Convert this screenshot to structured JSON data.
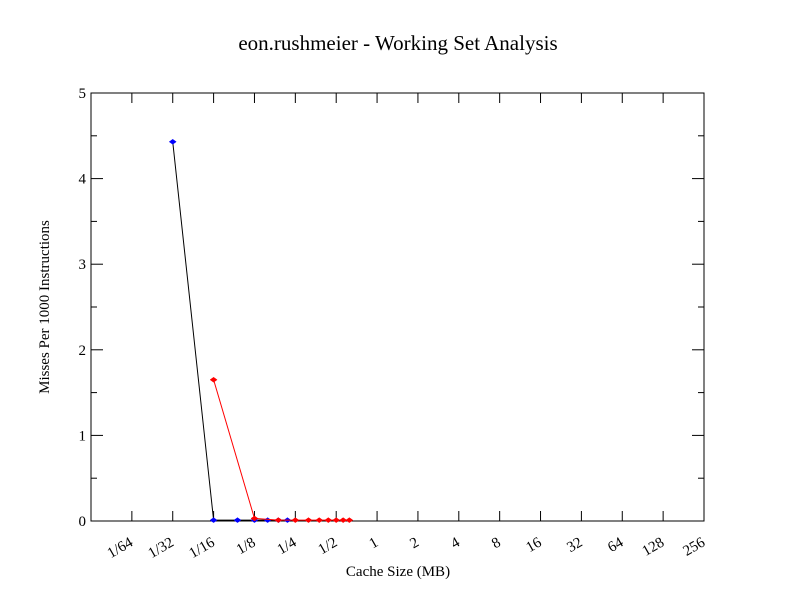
{
  "chart_data": {
    "type": "line",
    "title": "eon.rushmeier - Working Set Analysis",
    "xlabel": "Cache Size (MB)",
    "ylabel": "Misses Per 1000 Instructions",
    "x_scale": "log2",
    "x_ticks": [
      "1/64",
      "1/32",
      "1/16",
      "1/8",
      "1/4",
      "1/2",
      "1",
      "2",
      "4",
      "8",
      "16",
      "32",
      "64",
      "128",
      "256"
    ],
    "x_tick_values": [
      0.015625,
      0.03125,
      0.0625,
      0.125,
      0.25,
      0.5,
      1,
      2,
      4,
      8,
      16,
      32,
      64,
      128,
      256
    ],
    "xlim": [
      0.0078125,
      256
    ],
    "ylim": [
      0,
      5
    ],
    "y_ticks": [
      "0",
      "1",
      "2",
      "3",
      "4",
      "5"
    ],
    "y_tick_values": [
      0,
      1,
      2,
      3,
      4,
      5
    ],
    "grid": false,
    "series": [
      {
        "line_color": "#000000",
        "marker_color": "#0000ff",
        "x": [
          0.03125,
          0.0625,
          0.09375,
          0.125,
          0.15625,
          0.1875,
          0.21875
        ],
        "y": [
          4.43,
          0.01,
          0.01,
          0.01,
          0.01,
          0.01,
          0.01
        ]
      },
      {
        "line_color": "#ff0000",
        "marker_color": "#ff0000",
        "x": [
          0.0625,
          0.125,
          0.1875,
          0.25,
          0.3125,
          0.375,
          0.4375,
          0.5,
          0.5625,
          0.625
        ],
        "y": [
          1.65,
          0.03,
          0.01,
          0.01,
          0.01,
          0.01,
          0.01,
          0.01,
          0.01,
          0.01
        ]
      }
    ]
  }
}
